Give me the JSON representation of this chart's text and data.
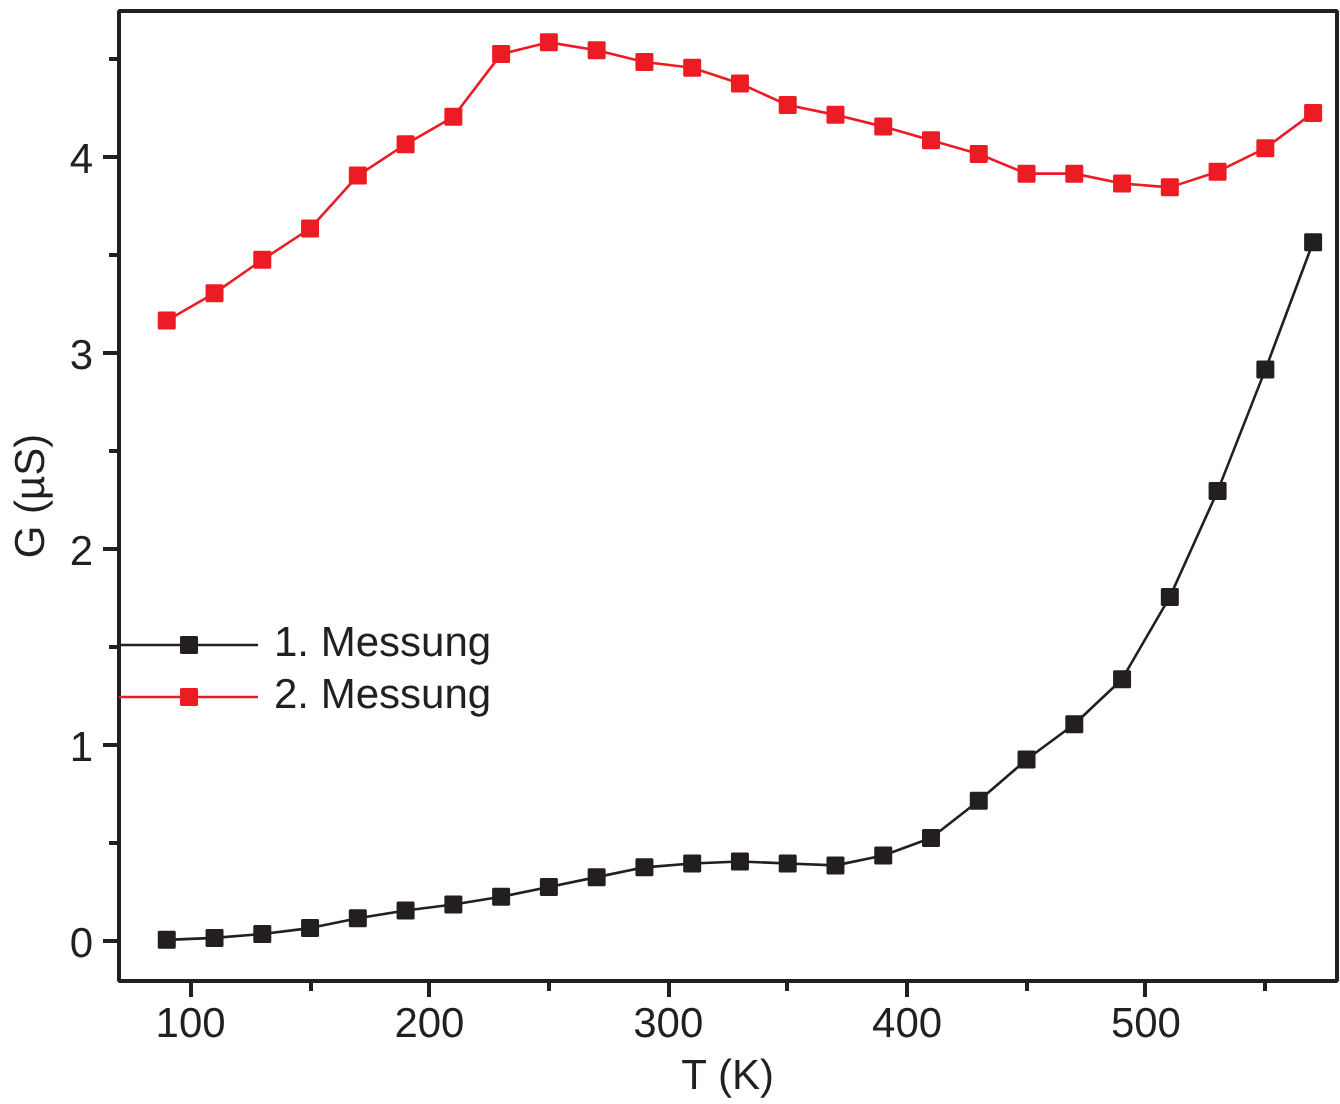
{
  "chart_data": {
    "type": "line",
    "xlabel": "T (K)",
    "ylabel": "G (µS)",
    "x": [
      90,
      110,
      130,
      150,
      170,
      190,
      210,
      230,
      250,
      270,
      290,
      310,
      330,
      350,
      370,
      390,
      410,
      430,
      450,
      470,
      490,
      510,
      530,
      550,
      570
    ],
    "series": [
      {
        "name": "1. Messung",
        "color": "#231f20",
        "values": [
          0.01,
          0.02,
          0.04,
          0.07,
          0.12,
          0.16,
          0.19,
          0.23,
          0.28,
          0.33,
          0.38,
          0.4,
          0.41,
          0.4,
          0.39,
          0.44,
          0.53,
          0.72,
          0.93,
          1.11,
          1.34,
          1.76,
          2.3,
          2.92,
          3.57
        ]
      },
      {
        "name": "2. Messung",
        "color": "#ed1c24",
        "values": [
          3.17,
          3.31,
          3.48,
          3.64,
          3.91,
          4.07,
          4.21,
          4.53,
          4.59,
          4.55,
          4.49,
          4.46,
          4.38,
          4.27,
          4.22,
          4.16,
          4.09,
          4.02,
          3.92,
          3.92,
          3.87,
          3.85,
          3.93,
          4.05,
          4.23
        ]
      }
    ],
    "xlim": [
      70,
      580
    ],
    "xticks": [
      100,
      {
        "value": 150,
        "label": null
      },
      200,
      {
        "value": 250,
        "label": null
      },
      300,
      {
        "value": 350,
        "label": null
      },
      400,
      {
        "value": 450,
        "label": null
      },
      500,
      {
        "value": 550,
        "label": null
      }
    ],
    "ylim": [
      -0.2,
      4.75
    ],
    "yticks": [
      0,
      {
        "value": 0.5,
        "label": null
      },
      1,
      {
        "value": 1.5,
        "label": null
      },
      2,
      {
        "value": 2.5,
        "label": null
      },
      3,
      {
        "value": 3.5,
        "label": null
      },
      4,
      {
        "value": 4.5,
        "label": null
      }
    ],
    "marker": "square",
    "line_style": "solid",
    "grid": false,
    "legend": "left"
  }
}
